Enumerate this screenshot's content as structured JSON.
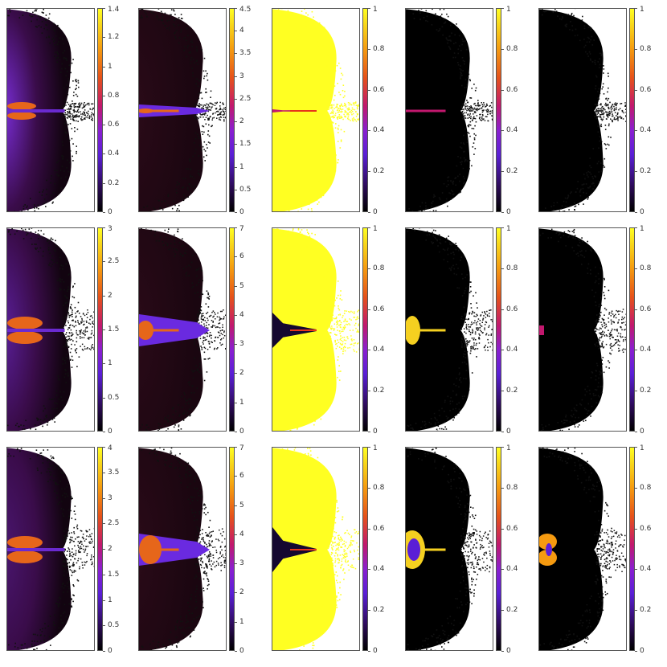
{
  "chart_data": {
    "type": "heatmap",
    "rows": 3,
    "cols": 5,
    "colormap_colors": [
      "#000000",
      "#5a1fd6",
      "#c2186e",
      "#f59a10",
      "#ffff22"
    ],
    "panels": [
      {
        "row": 0,
        "col": 0,
        "ticks": [
          "0",
          "0.2",
          "0.4",
          "0.6",
          "0.8",
          "1",
          "1.2",
          "1.4"
        ],
        "max": 1.4,
        "fill": "glow",
        "base": "#7a2ed8"
      },
      {
        "row": 0,
        "col": 1,
        "ticks": [
          "0",
          "0.5",
          "1",
          "1.5",
          "2",
          "2.5",
          "3",
          "3.5",
          "4",
          "4.5"
        ],
        "max": 4.5,
        "fill": "dark",
        "base": "#2a0a18"
      },
      {
        "row": 0,
        "col": 2,
        "ticks": [
          "0",
          "0.2",
          "0.4",
          "0.6",
          "0.8",
          "1"
        ],
        "max": 1,
        "fill": "yellow",
        "base": "#ffff22"
      },
      {
        "row": 0,
        "col": 3,
        "ticks": [
          "0",
          "0.2",
          "0.4",
          "0.6",
          "0.8",
          "1"
        ],
        "max": 1,
        "fill": "black",
        "base": "#000000"
      },
      {
        "row": 0,
        "col": 4,
        "ticks": [
          "0",
          "0.2",
          "0.4",
          "0.6",
          "0.8",
          "1"
        ],
        "max": 1,
        "fill": "black",
        "base": "#000000"
      },
      {
        "row": 1,
        "col": 0,
        "ticks": [
          "0",
          "0.5",
          "1",
          "1.5",
          "2",
          "2.5",
          "3"
        ],
        "max": 3,
        "fill": "glow",
        "base": "#5a1f9a"
      },
      {
        "row": 1,
        "col": 1,
        "ticks": [
          "0",
          "1",
          "2",
          "3",
          "4",
          "5",
          "6",
          "7"
        ],
        "max": 7,
        "fill": "dark",
        "base": "#2a0a18"
      },
      {
        "row": 1,
        "col": 2,
        "ticks": [
          "0",
          "0.2",
          "0.4",
          "0.6",
          "0.8",
          "1"
        ],
        "max": 1,
        "fill": "yellow",
        "base": "#ffff22"
      },
      {
        "row": 1,
        "col": 3,
        "ticks": [
          "0",
          "0.2",
          "0.4",
          "0.6",
          "0.8",
          "1"
        ],
        "max": 1,
        "fill": "black",
        "base": "#000000"
      },
      {
        "row": 1,
        "col": 4,
        "ticks": [
          "0",
          "0.2",
          "0.4",
          "0.6",
          "0.8",
          "1"
        ],
        "max": 1,
        "fill": "black",
        "base": "#000000"
      },
      {
        "row": 2,
        "col": 0,
        "ticks": [
          "0",
          "0.5",
          "1",
          "1.5",
          "2",
          "2.5",
          "3",
          "3.5",
          "4"
        ],
        "max": 4,
        "fill": "glow",
        "base": "#4a1670"
      },
      {
        "row": 2,
        "col": 1,
        "ticks": [
          "0",
          "1",
          "2",
          "3",
          "4",
          "5",
          "6",
          "7"
        ],
        "max": 7,
        "fill": "dark",
        "base": "#2a0a18"
      },
      {
        "row": 2,
        "col": 2,
        "ticks": [
          "0",
          "0.2",
          "0.4",
          "0.6",
          "0.8",
          "1"
        ],
        "max": 1,
        "fill": "yellow",
        "base": "#ffff22"
      },
      {
        "row": 2,
        "col": 3,
        "ticks": [
          "0",
          "0.2",
          "0.4",
          "0.6",
          "0.8",
          "1"
        ],
        "max": 1,
        "fill": "black",
        "base": "#000000"
      },
      {
        "row": 2,
        "col": 4,
        "ticks": [
          "0",
          "0.2",
          "0.4",
          "0.6",
          "0.8",
          "1"
        ],
        "max": 1,
        "fill": "black",
        "base": "#000000"
      }
    ]
  }
}
